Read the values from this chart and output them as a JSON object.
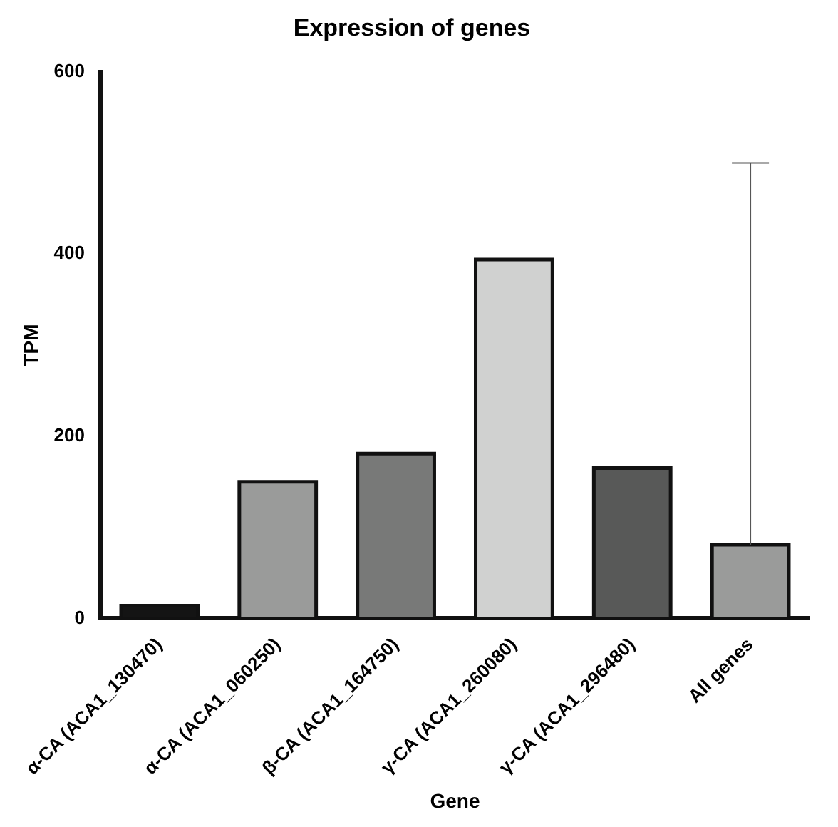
{
  "chart_data": {
    "type": "bar",
    "title": "Expression of genes",
    "xlabel": "Gene",
    "ylabel": "TPM",
    "categories": [
      "α-CA (ACA1_130470)",
      "α-CA (ACA1_060250)",
      "β-CA (ACA1_164750)",
      "γ-CA (ACA1_260080)",
      "γ-CA (ACA1_296480)",
      "All genes"
    ],
    "values": [
      14,
      150,
      181,
      394,
      165,
      81
    ],
    "colors": [
      "#141414",
      "#9a9b9a",
      "#787978",
      "#d0d1d0",
      "#585958",
      "#9a9b9a"
    ],
    "errors": [
      null,
      null,
      null,
      null,
      null,
      [
        81,
        500
      ]
    ],
    "ylim": [
      0,
      600
    ],
    "yticks": [
      0,
      200,
      400,
      600
    ],
    "grid": false,
    "legend": false
  }
}
